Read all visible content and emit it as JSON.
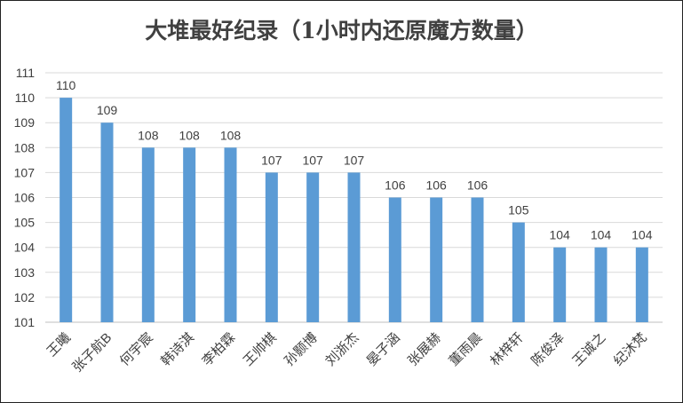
{
  "chart_data": {
    "type": "bar",
    "title": "大堆最好纪录（1小时内还原魔方数量）",
    "xlabel": "",
    "ylabel": "",
    "categories": [
      "王曦",
      "张子航B",
      "何宇宸",
      "韩诗淇",
      "李柏霖",
      "王帅棋",
      "孙颢博",
      "刘浙杰",
      "晏子涵",
      "张展赫",
      "董雨晨",
      "林梓轩",
      "陈俊泽",
      "王诚之",
      "纪沐梵"
    ],
    "values": [
      110,
      109,
      108,
      108,
      108,
      107,
      107,
      107,
      106,
      106,
      106,
      105,
      104,
      104,
      104
    ],
    "ylim": [
      101,
      111
    ],
    "yticks": [
      101,
      102,
      103,
      104,
      105,
      106,
      107,
      108,
      109,
      110,
      111
    ],
    "grid": true,
    "data_labels": true,
    "colors": {
      "bar": "#5b9bd5",
      "grid": "#d9d9d9",
      "text": "#404040"
    }
  }
}
